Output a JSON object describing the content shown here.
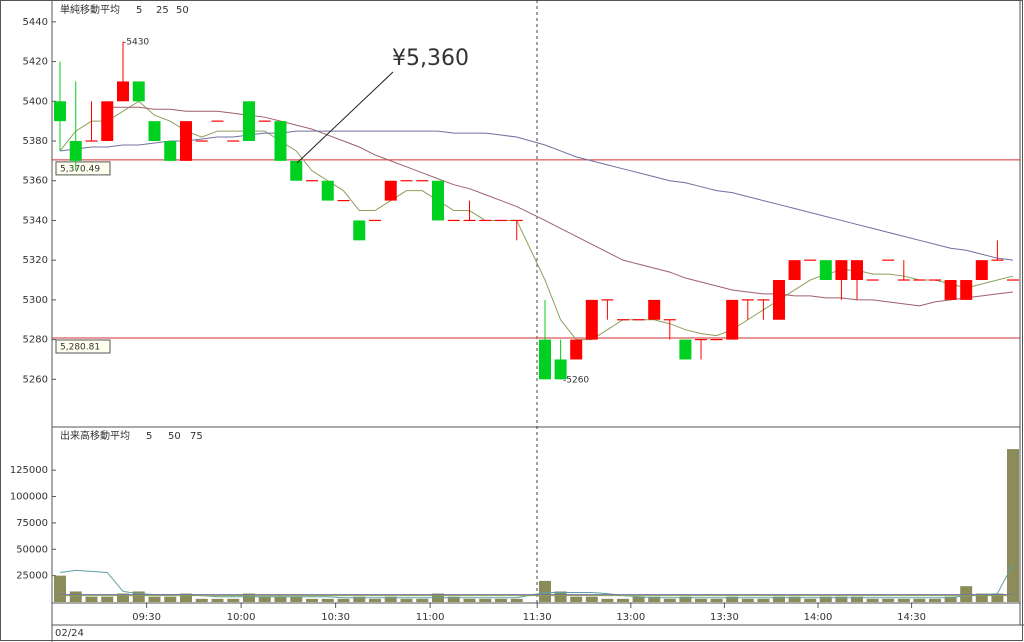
{
  "chart_data": [
    {
      "type": "candlestick",
      "legend_title": "単純移動平均",
      "up_color": "#ff0000",
      "down_color": "#00d020",
      "open": [
        5400,
        5380,
        5380,
        5380,
        5400,
        5410,
        5390,
        5380,
        5370,
        5380,
        5390,
        5380,
        5400,
        5390,
        5390,
        5370,
        5360,
        5360,
        5350,
        5340,
        5340,
        5350,
        5360,
        5360,
        5360,
        5340,
        5340,
        5340,
        5340,
        5340,
        5280,
        5270,
        5270,
        5280,
        5300,
        5290,
        5290,
        5290,
        5290,
        5280,
        5280,
        5280,
        5280,
        5300,
        5300,
        5290,
        5310,
        5320,
        5320,
        5310,
        5310,
        5310,
        5320,
        5310,
        5310,
        5310,
        5300,
        5300,
        5310,
        5320,
        5310
      ],
      "high": [
        5420,
        5410,
        5400,
        5400,
        5430,
        5410,
        5390,
        5380,
        5390,
        5380,
        5390,
        5380,
        5400,
        5390,
        5390,
        5370,
        5360,
        5360,
        5350,
        5340,
        5340,
        5360,
        5360,
        5360,
        5360,
        5340,
        5350,
        5340,
        5340,
        5340,
        5300,
        5280,
        5280,
        5300,
        5300,
        5290,
        5290,
        5300,
        5290,
        5280,
        5280,
        5280,
        5300,
        5300,
        5300,
        5310,
        5320,
        5320,
        5320,
        5320,
        5320,
        5310,
        5320,
        5320,
        5310,
        5310,
        5310,
        5310,
        5320,
        5330,
        5310
      ],
      "low": [
        5375,
        5365,
        5380,
        5380,
        5400,
        5400,
        5380,
        5370,
        5370,
        5380,
        5390,
        5380,
        5380,
        5390,
        5370,
        5360,
        5360,
        5350,
        5350,
        5330,
        5340,
        5350,
        5360,
        5360,
        5340,
        5340,
        5340,
        5340,
        5340,
        5330,
        5260,
        5260,
        5270,
        5280,
        5290,
        5290,
        5290,
        5290,
        5280,
        5270,
        5270,
        5280,
        5280,
        5290,
        5290,
        5290,
        5310,
        5320,
        5310,
        5300,
        5300,
        5310,
        5320,
        5310,
        5310,
        5310,
        5300,
        5300,
        5310,
        5320,
        5310
      ],
      "close": [
        5390,
        5370,
        5380,
        5400,
        5410,
        5400,
        5380,
        5370,
        5390,
        5380,
        5390,
        5380,
        5380,
        5390,
        5370,
        5360,
        5360,
        5350,
        5350,
        5330,
        5340,
        5360,
        5360,
        5360,
        5340,
        5340,
        5340,
        5340,
        5340,
        5340,
        5260,
        5260,
        5280,
        5300,
        5300,
        5290,
        5290,
        5300,
        5290,
        5270,
        5280,
        5280,
        5300,
        5300,
        5300,
        5310,
        5320,
        5320,
        5310,
        5320,
        5320,
        5310,
        5320,
        5310,
        5310,
        5310,
        5310,
        5310,
        5320,
        5320,
        5310
      ],
      "series": [
        {
          "name": "5",
          "color": "#8aa05a",
          "values": [
            5375,
            5385,
            5390,
            5390,
            5395,
            5400,
            5393,
            5390,
            5385,
            5382,
            5385,
            5385,
            5385,
            5385,
            5380,
            5375,
            5365,
            5360,
            5355,
            5345,
            5345,
            5350,
            5355,
            5355,
            5350,
            5345,
            5345,
            5340,
            5340,
            5340,
            5310,
            5290,
            5280,
            5280,
            5285,
            5290,
            5290,
            5290,
            5288,
            5285,
            5283,
            5282,
            5285,
            5290,
            5295,
            5300,
            5305,
            5310,
            5313,
            5315,
            5315,
            5313,
            5313,
            5312,
            5310,
            5310,
            5308,
            5306,
            5308,
            5310,
            5312
          ]
        },
        {
          "name": "25",
          "color": "#a0606a",
          "values": [
            null,
            null,
            null,
            5397,
            5397,
            5397,
            5396,
            5396,
            5395,
            5395,
            5395,
            5394,
            5393,
            5392,
            5390,
            5388,
            5386,
            5383,
            5380,
            5377,
            5373,
            5370,
            5367,
            5364,
            5361,
            5358,
            5356,
            5353,
            5350,
            5347,
            5340,
            5336,
            5332,
            5328,
            5324,
            5320,
            5318,
            5316,
            5314,
            5311,
            5309,
            5307,
            5305,
            5304,
            5303,
            5303,
            5302,
            5302,
            5301,
            5301,
            5300,
            5300,
            5299,
            5298,
            5297,
            5299,
            5300,
            5301,
            5302,
            5303,
            5304
          ]
        },
        {
          "name": "50",
          "color": "#7070a0",
          "values": [
            5375,
            5376,
            5377,
            5377,
            5378,
            5378,
            5379,
            5380,
            5380,
            5381,
            5382,
            5382,
            5383,
            5384,
            5384,
            5385,
            5385,
            5385,
            5385,
            5385,
            5385,
            5385,
            5385,
            5385,
            5385,
            5384,
            5384,
            5384,
            5383,
            5382,
            5378,
            5375,
            5372,
            5370,
            5368,
            5366,
            5364,
            5362,
            5360,
            5359,
            5357,
            5355,
            5354,
            5352,
            5350,
            5348,
            5346,
            5344,
            5342,
            5340,
            5338,
            5336,
            5334,
            5332,
            5330,
            5328,
            5326,
            5325,
            5323,
            5321,
            5320
          ]
        }
      ],
      "ylim": [
        5237,
        5450
      ],
      "yticks": [
        5260,
        5280,
        5300,
        5320,
        5340,
        5360,
        5380,
        5400,
        5420,
        5440
      ],
      "hlines": [
        {
          "value": 5370.49,
          "label": "5,370.49"
        },
        {
          "value": 5280.81,
          "label": "5,280.81"
        }
      ],
      "hline_color": "#d03030",
      "annotations": [
        "-5430",
        "-5260",
        "¥5,360"
      ]
    },
    {
      "type": "bar",
      "legend_title": "出来高移動平均",
      "color": "#8c8c5a",
      "categories": [
        null,
        null,
        null,
        null,
        null,
        null,
        "09:30",
        null,
        null,
        null,
        null,
        null,
        "10:00",
        null,
        null,
        null,
        null,
        null,
        "10:30",
        null,
        null,
        null,
        null,
        null,
        "11:00",
        null,
        null,
        null,
        null,
        null,
        "11:30",
        null,
        null,
        null,
        null,
        null,
        "13:00",
        null,
        null,
        null,
        null,
        null,
        "13:30",
        null,
        null,
        null,
        null,
        null,
        "14:00",
        null,
        null,
        null,
        null,
        null,
        "14:30",
        null,
        null,
        null,
        null,
        null,
        null
      ],
      "values": [
        25000,
        10000,
        5000,
        5000,
        8000,
        10000,
        5000,
        5000,
        8000,
        3000,
        3000,
        3000,
        8000,
        5000,
        5000,
        5000,
        3000,
        3000,
        3000,
        5000,
        3000,
        5000,
        3000,
        3000,
        8000,
        5000,
        3000,
        3000,
        3000,
        3000,
        20000,
        10000,
        5000,
        5000,
        3000,
        3000,
        5000,
        5000,
        3000,
        5000,
        3000,
        3000,
        5000,
        3000,
        3000,
        5000,
        5000,
        3000,
        5000,
        5000,
        5000,
        3000,
        3000,
        3000,
        3000,
        3000,
        5000,
        15000,
        8000,
        8000,
        145000
      ],
      "series": [
        {
          "name": "5",
          "color": "#5fa0a0",
          "values": [
            28000,
            30000,
            29000,
            28000,
            10000,
            8000,
            7000,
            7000,
            7000,
            6000,
            5000,
            5000,
            5000,
            5000,
            5000,
            5000,
            5000,
            5000,
            4000,
            4000,
            4000,
            4000,
            4000,
            4000,
            4000,
            4000,
            4000,
            4000,
            4000,
            4000,
            9000,
            9000,
            9000,
            9000,
            8000,
            6000,
            5000,
            4000,
            4000,
            4000,
            4000,
            4000,
            4000,
            4000,
            4000,
            4000,
            4000,
            4000,
            4000,
            4000,
            4000,
            4000,
            4000,
            4000,
            4000,
            4000,
            4000,
            6000,
            7000,
            8000,
            36000
          ]
        },
        {
          "name": "50",
          "color": "#7070a0",
          "values": [
            7000,
            7000,
            7000,
            7000,
            7000,
            7000,
            7000,
            7000,
            7000,
            7000,
            7000,
            7000,
            7000,
            7000,
            7000,
            7000,
            7000,
            7000,
            7000,
            7000,
            7000,
            7000,
            7000,
            7000,
            7000,
            7000,
            7000,
            7000,
            7000,
            7000,
            7000,
            7000,
            7000,
            7000,
            7000,
            7000,
            7000,
            7000,
            7000,
            7000,
            7000,
            7000,
            7000,
            7000,
            7000,
            7000,
            7000,
            7000,
            7000,
            7000,
            7000,
            7000,
            7000,
            7000,
            7000,
            7000,
            7000,
            7000,
            7000,
            7000,
            7000
          ]
        },
        {
          "name": "75",
          "color": "#8aa05a",
          "values": [
            6000,
            6000,
            6000,
            6000,
            6000,
            6000,
            6000,
            6000,
            6000,
            6000,
            6000,
            6000,
            6000,
            6000,
            6000,
            6000,
            6000,
            6000,
            6000,
            6000,
            6000,
            6000,
            6000,
            6000,
            6000,
            6000,
            6000,
            6000,
            6000,
            6000,
            6000,
            6000,
            6000,
            6000,
            6000,
            6000,
            6000,
            6000,
            6000,
            6000,
            6000,
            6000,
            6000,
            6000,
            6000,
            6000,
            6000,
            6000,
            6000,
            6000,
            6000,
            6000,
            6000,
            6000,
            6000,
            6000,
            6000,
            6000,
            6000,
            6000,
            6000
          ]
        }
      ],
      "ylim": [
        0,
        165000
      ],
      "yticks": [
        25000,
        50000,
        75000,
        100000,
        125000
      ],
      "date_label": "02/24"
    }
  ]
}
